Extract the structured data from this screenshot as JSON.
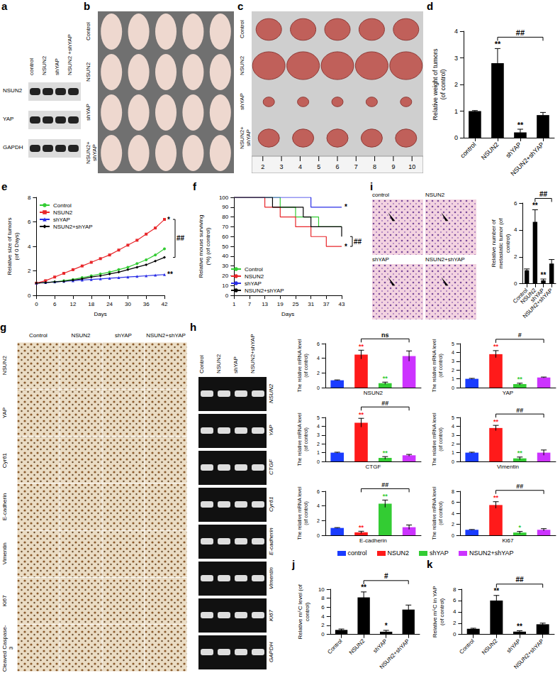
{
  "panels": [
    {
      "panel": "a",
      "type": "western_blot",
      "columns": [
        "control",
        "NSUN2",
        "shYAP",
        "NSUN2 +shYAP"
      ],
      "rows": [
        "NSUN2",
        "YAP",
        "GAPDH"
      ]
    },
    {
      "panel": "b",
      "type": "photo",
      "rows": [
        "Control",
        "NSUN2",
        "shYAP",
        "NSUN2+ shYAP"
      ]
    },
    {
      "panel": "c",
      "type": "photo",
      "rows": [
        "Control",
        "NSUN2",
        "shYAP",
        "NSUN2+ shYAP"
      ],
      "ruler": [
        2,
        3,
        4,
        5,
        6,
        7,
        8,
        9,
        10
      ]
    },
    {
      "panel": "g",
      "type": "ihc",
      "columns": [
        "Control",
        "NSUN2",
        "shYAP",
        "NSUN2+shYAP"
      ],
      "rows": [
        "NSUN2",
        "YAP",
        "Cyr61",
        "E-cadherin",
        "Vimentin",
        "Ki67",
        "Cleaved Caspase-3"
      ]
    },
    {
      "panel": "h",
      "type": "gel",
      "columns": [
        "Control",
        "NSUN2",
        "shYAP",
        "NSUN2+shYAP"
      ],
      "rows": [
        "NSUN2",
        "YAP",
        "CTGF",
        "Cyr61",
        "E-cadherin",
        "Vimentin",
        "Ki67",
        "GAPDH"
      ]
    },
    {
      "panel": "i",
      "type": "histology",
      "images": [
        "control",
        "NSUN2",
        "shYAP",
        "NSUN2+shYAP"
      ]
    }
  ],
  "chart_data": [
    {
      "panel": "d",
      "type": "bar",
      "categories": [
        "control",
        "NSUN2",
        "shYAP",
        "NSUN2+shYAP"
      ],
      "values": [
        1,
        2.8,
        0.2,
        0.85
      ],
      "errors": [
        0.02,
        0.55,
        0.12,
        0.1
      ],
      "color": "#000000",
      "ylabel": "Relative weight of tumors (of control)",
      "ylim": [
        0,
        4
      ],
      "yticks": [
        0,
        1,
        2,
        3,
        4
      ],
      "annotations": [
        {
          "text": "**",
          "at": "NSUN2"
        },
        {
          "text": "**",
          "at": "shYAP"
        },
        {
          "text": "##",
          "from": "NSUN2",
          "to": "NSUN2+shYAP"
        }
      ]
    },
    {
      "panel": "e",
      "type": "line",
      "xlabel": "Days",
      "ylabel": "Relative size of tumors (of 0 Days)",
      "x": [
        0,
        3,
        6,
        9,
        12,
        15,
        18,
        21,
        24,
        27,
        30,
        33,
        36,
        39,
        42
      ],
      "xlim": [
        0,
        42
      ],
      "xticks": [
        0,
        6,
        12,
        18,
        24,
        30,
        36,
        42
      ],
      "ylim": [
        0,
        8
      ],
      "yticks": [
        0,
        2,
        4,
        6,
        8
      ],
      "legend": "upper left",
      "series": [
        {
          "name": "Control",
          "color": "#33cc33",
          "marker": "circle",
          "values": [
            1,
            1.05,
            1.1,
            1.2,
            1.3,
            1.45,
            1.6,
            1.75,
            1.9,
            2.1,
            2.3,
            2.6,
            2.9,
            3.3,
            3.8
          ]
        },
        {
          "name": "NSUN2",
          "color": "#e8262a",
          "marker": "square",
          "values": [
            1,
            1.2,
            1.5,
            1.8,
            2.1,
            2.4,
            2.7,
            3.0,
            3.3,
            3.7,
            4.1,
            4.5,
            5.0,
            5.5,
            6.2
          ]
        },
        {
          "name": "shYAP",
          "color": "#2a2ee6",
          "marker": "triangle",
          "values": [
            1,
            1.05,
            1.1,
            1.15,
            1.2,
            1.25,
            1.3,
            1.35,
            1.4,
            1.45,
            1.5,
            1.55,
            1.6,
            1.65,
            1.7
          ]
        },
        {
          "name": "NSUN2+shYAP",
          "color": "#000000",
          "marker": "diamond",
          "values": [
            1,
            1.05,
            1.1,
            1.15,
            1.25,
            1.35,
            1.5,
            1.6,
            1.75,
            1.9,
            2.1,
            2.3,
            2.5,
            2.8,
            3.1
          ]
        }
      ],
      "annotations": [
        {
          "text": "*",
          "at": "NSUN2"
        },
        {
          "text": "**",
          "at": "shYAP"
        },
        {
          "text": "##",
          "from": "NSUN2",
          "to": "NSUN2+shYAP"
        }
      ]
    },
    {
      "panel": "f",
      "type": "step",
      "xlabel": "Days",
      "ylabel": "Relative mouse surviving (%) (of control)",
      "x": [
        1,
        13,
        16,
        19,
        22,
        25,
        28,
        31,
        34,
        37,
        40,
        43
      ],
      "xlim": [
        1,
        43
      ],
      "xticks": [
        1,
        7,
        13,
        19,
        25,
        31,
        37,
        43
      ],
      "ylim": [
        0,
        100
      ],
      "yticks": [
        0,
        10,
        20,
        30,
        40,
        50,
        60,
        70,
        80,
        90,
        100
      ],
      "legend": "lower left",
      "series": [
        {
          "name": "Control",
          "color": "#33cc33",
          "values": [
            100,
            100,
            100,
            90,
            90,
            80,
            80,
            80,
            70,
            70,
            70,
            70
          ]
        },
        {
          "name": "NSUN2",
          "color": "#e8262a",
          "values": [
            100,
            90,
            90,
            80,
            80,
            70,
            70,
            60,
            60,
            50,
            50,
            50
          ]
        },
        {
          "name": "shYAP",
          "color": "#2a2ee6",
          "values": [
            100,
            100,
            100,
            100,
            100,
            100,
            100,
            90,
            90,
            90,
            90,
            90
          ]
        },
        {
          "name": "NSUN2+shYAP",
          "color": "#000000",
          "values": [
            100,
            100,
            90,
            90,
            90,
            90,
            80,
            70,
            70,
            70,
            70,
            60
          ]
        }
      ],
      "annotations": [
        {
          "text": "*",
          "at": "shYAP"
        },
        {
          "text": "*",
          "at": "NSUN2"
        },
        {
          "text": "##",
          "from": "NSUN2+shYAP",
          "to": "NSUN2"
        }
      ]
    },
    {
      "type": "bar",
      "categories": [
        "Control",
        "NSUN2",
        "shYAP",
        "NSUN2+shYAP"
      ],
      "values": [
        1,
        4.6,
        0.25,
        1.5
      ],
      "errors": [
        0.1,
        0.9,
        0.1,
        0.3
      ],
      "color": "#000000",
      "ylabel": "Relative number of metastatic tumor (of control)",
      "ylim": [
        0,
        6
      ],
      "yticks": [
        0,
        2,
        4,
        6
      ],
      "annotations": [
        {
          "text": "**",
          "at": "NSUN2"
        },
        {
          "text": "**",
          "at": "shYAP"
        },
        {
          "text": "##",
          "from": "NSUN2",
          "to": "NSUN2+shYAP"
        }
      ]
    },
    {
      "type": "bar",
      "xlabel": "NSUN2",
      "categories": [
        "control",
        "NSUN2",
        "shYAP",
        "NSUN2+shYAP"
      ],
      "colors": [
        "#1a3cff",
        "#ff1a1a",
        "#33cc33",
        "#cc33ff"
      ],
      "tick_labels": "y",
      "values": [
        1,
        4.5,
        0.6,
        4.3
      ],
      "errors": [
        0.05,
        0.6,
        0.15,
        0.7
      ],
      "ylabel": "The relative mRNA level (of control)",
      "ylim": [
        0,
        6
      ],
      "yticks": [
        0,
        2,
        4,
        6
      ],
      "annotations": [
        {
          "text": "**",
          "at": "NSUN2"
        },
        {
          "text": "**",
          "at": "shYAP"
        },
        {
          "text": "ns",
          "from": "NSUN2",
          "to": "NSUN2+shYAP"
        }
      ]
    },
    {
      "type": "bar",
      "xlabel": "YAP",
      "categories": [
        "control",
        "NSUN2",
        "shYAP",
        "NSUN2+shYAP"
      ],
      "colors": [
        "#1a3cff",
        "#ff1a1a",
        "#33cc33",
        "#cc33ff"
      ],
      "tick_labels": "y",
      "values": [
        1,
        3.8,
        0.4,
        1.15
      ],
      "errors": [
        0.05,
        0.4,
        0.1,
        0.05
      ],
      "ylabel": "The relative mRNA level (of control)",
      "ylim": [
        0,
        5
      ],
      "yticks": [
        0,
        1,
        2,
        3,
        4,
        5
      ],
      "annotations": [
        {
          "text": "**",
          "at": "NSUN2"
        },
        {
          "text": "**",
          "at": "shYAP"
        },
        {
          "text": "#",
          "from": "NSUN2",
          "to": "NSUN2+shYAP"
        }
      ]
    },
    {
      "type": "bar",
      "xlabel": "CTGF",
      "categories": [
        "control",
        "NSUN2",
        "shYAP",
        "NSUN2+shYAP"
      ],
      "colors": [
        "#1a3cff",
        "#ff1a1a",
        "#33cc33",
        "#cc33ff"
      ],
      "tick_labels": "y",
      "values": [
        1,
        4.4,
        0.4,
        0.7
      ],
      "errors": [
        0.05,
        0.5,
        0.15,
        0.1
      ],
      "ylabel": "The relative mRNA level (of control)",
      "ylim": [
        0,
        5
      ],
      "yticks": [
        0,
        1,
        2,
        3,
        4,
        5
      ],
      "annotations": [
        {
          "text": "**",
          "at": "NSUN2"
        },
        {
          "text": "**",
          "at": "shYAP"
        },
        {
          "text": "##",
          "from": "NSUN2",
          "to": "NSUN2+shYAP"
        }
      ]
    },
    {
      "type": "bar",
      "xlabel": "Vimentin",
      "categories": [
        "control",
        "NSUN2",
        "shYAP",
        "NSUN2+shYAP"
      ],
      "colors": [
        "#1a3cff",
        "#ff1a1a",
        "#33cc33",
        "#cc33ff"
      ],
      "tick_labels": "y",
      "values": [
        1,
        3.8,
        0.35,
        1.0
      ],
      "errors": [
        0.05,
        0.3,
        0.15,
        0.3
      ],
      "ylabel": "The relative mRNA level (of control)",
      "ylim": [
        0,
        5
      ],
      "yticks": [
        0,
        1,
        2,
        3,
        4,
        5
      ],
      "annotations": [
        {
          "text": "**",
          "at": "NSUN2"
        },
        {
          "text": "**",
          "at": "shYAP"
        },
        {
          "text": "##",
          "from": "NSUN2",
          "to": "NSUN2+shYAP"
        }
      ]
    },
    {
      "type": "bar",
      "xlabel": "E-cadherin",
      "legend": "bottom",
      "categories": [
        "control",
        "NSUN2",
        "shYAP",
        "NSUN2+shYAP"
      ],
      "colors": [
        "#1a3cff",
        "#ff1a1a",
        "#33cc33",
        "#cc33ff"
      ],
      "tick_labels": "y",
      "values": [
        1,
        0.4,
        4.3,
        1.1
      ],
      "errors": [
        0.05,
        0.15,
        0.5,
        0.3
      ],
      "ylabel": "The relative mRNA level (of control)",
      "ylim": [
        0,
        6
      ],
      "yticks": [
        0,
        2,
        4,
        6
      ],
      "annotations": [
        {
          "text": "**",
          "at": "NSUN2"
        },
        {
          "text": "**",
          "at": "shYAP"
        },
        {
          "text": "##",
          "from": "NSUN2",
          "to": "NSUN2+shYAP"
        }
      ]
    },
    {
      "type": "bar",
      "xlabel": "Ki67",
      "categories": [
        "control",
        "NSUN2",
        "shYAP",
        "NSUN2+shYAP"
      ],
      "colors": [
        "#1a3cff",
        "#ff1a1a",
        "#33cc33",
        "#cc33ff"
      ],
      "tick_labels": "y",
      "values": [
        1,
        5.5,
        0.5,
        1.0
      ],
      "errors": [
        0.05,
        0.6,
        0.2,
        0.2
      ],
      "ylabel": "The relative mRNA level (of control)",
      "ylim": [
        0,
        8
      ],
      "yticks": [
        0,
        2,
        4,
        6,
        8
      ],
      "annotations": [
        {
          "text": "**",
          "at": "NSUN2"
        },
        {
          "text": "*",
          "at": "shYAP"
        },
        {
          "text": "##",
          "from": "NSUN2",
          "to": "NSUN2+shYAP"
        }
      ]
    },
    {
      "panel": "j",
      "type": "bar",
      "categories": [
        "Control",
        "NSUN2",
        "shYAP",
        "NSUN2+shYAP"
      ],
      "values": [
        1,
        8.2,
        0.6,
        5.5
      ],
      "errors": [
        0.2,
        1.2,
        0.3,
        1.0
      ],
      "color": "#000000",
      "ylabel": "Relative m⁵C level (of control)",
      "ylim": [
        0,
        10
      ],
      "yticks": [
        0,
        2,
        4,
        6,
        8,
        10
      ],
      "annotations": [
        {
          "text": "**",
          "at": "NSUN2"
        },
        {
          "text": "*",
          "at": "shYAP"
        },
        {
          "text": "#",
          "from": "NSUN2",
          "to": "NSUN2+shYAP"
        }
      ]
    },
    {
      "panel": "k",
      "type": "bar",
      "categories": [
        "Control",
        "NSUN2",
        "shYAP",
        "NSUN2+shYAP"
      ],
      "values": [
        1,
        6,
        0.5,
        1.8
      ],
      "errors": [
        0.1,
        0.9,
        0.15,
        0.2
      ],
      "color": "#000000",
      "ylabel": "Relative m⁵C in YAP (of control)",
      "ylim": [
        0,
        8
      ],
      "yticks": [
        0,
        2,
        4,
        6,
        8
      ],
      "annotations": [
        {
          "text": "**",
          "at": "NSUN2"
        },
        {
          "text": "**",
          "at": "shYAP"
        },
        {
          "text": "##",
          "from": "NSUN2",
          "to": "NSUN2+shYAP"
        }
      ]
    }
  ]
}
